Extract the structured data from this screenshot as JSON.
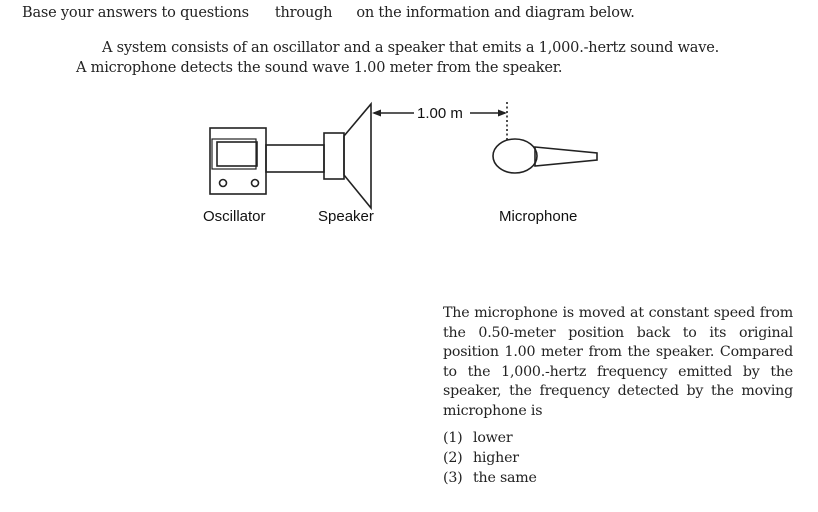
{
  "intro": {
    "part1": "Base your answers to questions",
    "part2": "through",
    "part3": "on the information and diagram below."
  },
  "stem": {
    "line1": "A system consists of an oscillator and a speaker that emits a 1,000.-hertz sound wave.",
    "line2": "A microphone detects the sound wave 1.00 meter from the speaker."
  },
  "diagram": {
    "distance_label": "1.00 m",
    "oscillator_label": "Oscillator",
    "speaker_label": "Speaker",
    "microphone_label": "Microphone"
  },
  "question": {
    "text": "The microphone is moved at constant speed from the 0.50-meter position back to its original position 1.00 meter from the speaker. Compared to the 1,000.-hertz frequency emitted by the speaker, the frequency detected by the moving microphone is",
    "choices": [
      {
        "number": "(1)",
        "text": "lower"
      },
      {
        "number": "(2)",
        "text": "higher"
      },
      {
        "number": "(3)",
        "text": "the same"
      }
    ]
  }
}
